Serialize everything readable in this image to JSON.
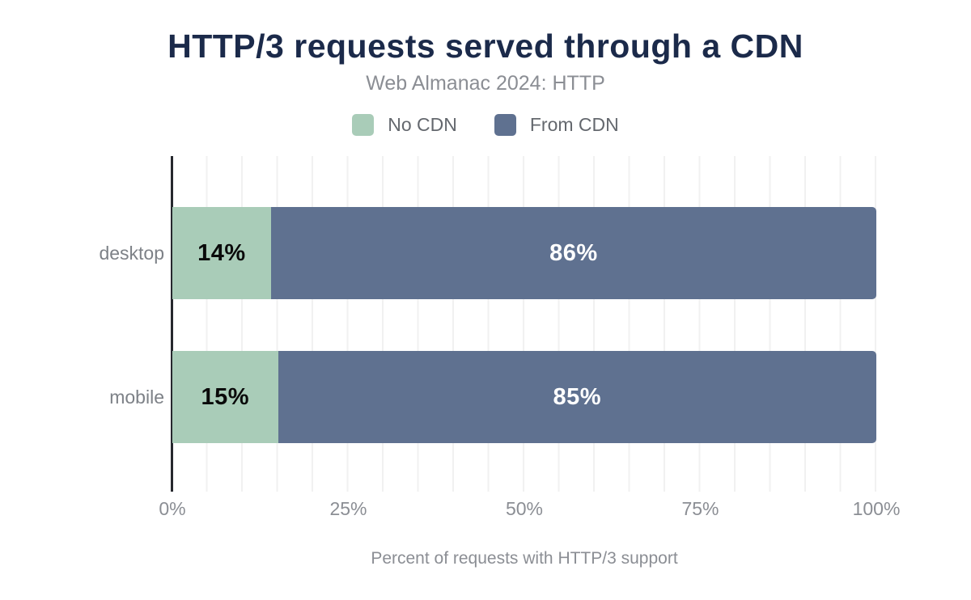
{
  "title": "HTTP/3 requests served through a CDN",
  "subtitle": "Web Almanac 2024: HTTP",
  "legend": [
    {
      "label": "No CDN",
      "color": "#a9ccb8"
    },
    {
      "label": "From CDN",
      "color": "#5f7190"
    }
  ],
  "colors": {
    "title_text": "#1b2a4a",
    "muted_text": "#8b8e94",
    "axis_line": "#26282e",
    "gridline": "#f1f1f1",
    "no_cdn_green": "#a9ccb8",
    "from_cdn_blue": "#5f7190"
  },
  "chart_data": {
    "type": "bar",
    "orientation": "horizontal",
    "stacked": true,
    "title": "HTTP/3 requests served through a CDN",
    "subtitle": "Web Almanac 2024: HTTP",
    "categories": [
      "desktop",
      "mobile"
    ],
    "series": [
      {
        "name": "No CDN",
        "color": "#a9ccb8",
        "values": [
          14,
          15
        ],
        "labels": [
          "14%",
          "15%"
        ]
      },
      {
        "name": "From CDN",
        "color": "#5f7190",
        "values": [
          86,
          85
        ],
        "labels": [
          "86%",
          "85%"
        ]
      }
    ],
    "xlabel": "Percent of requests with HTTP/3 support",
    "ylabel": "",
    "xlim": [
      0,
      100
    ],
    "xticks": [
      "0%",
      "25%",
      "50%",
      "75%",
      "100%"
    ],
    "grid": "vertical gridlines every 5%",
    "legend_position": "top center"
  }
}
